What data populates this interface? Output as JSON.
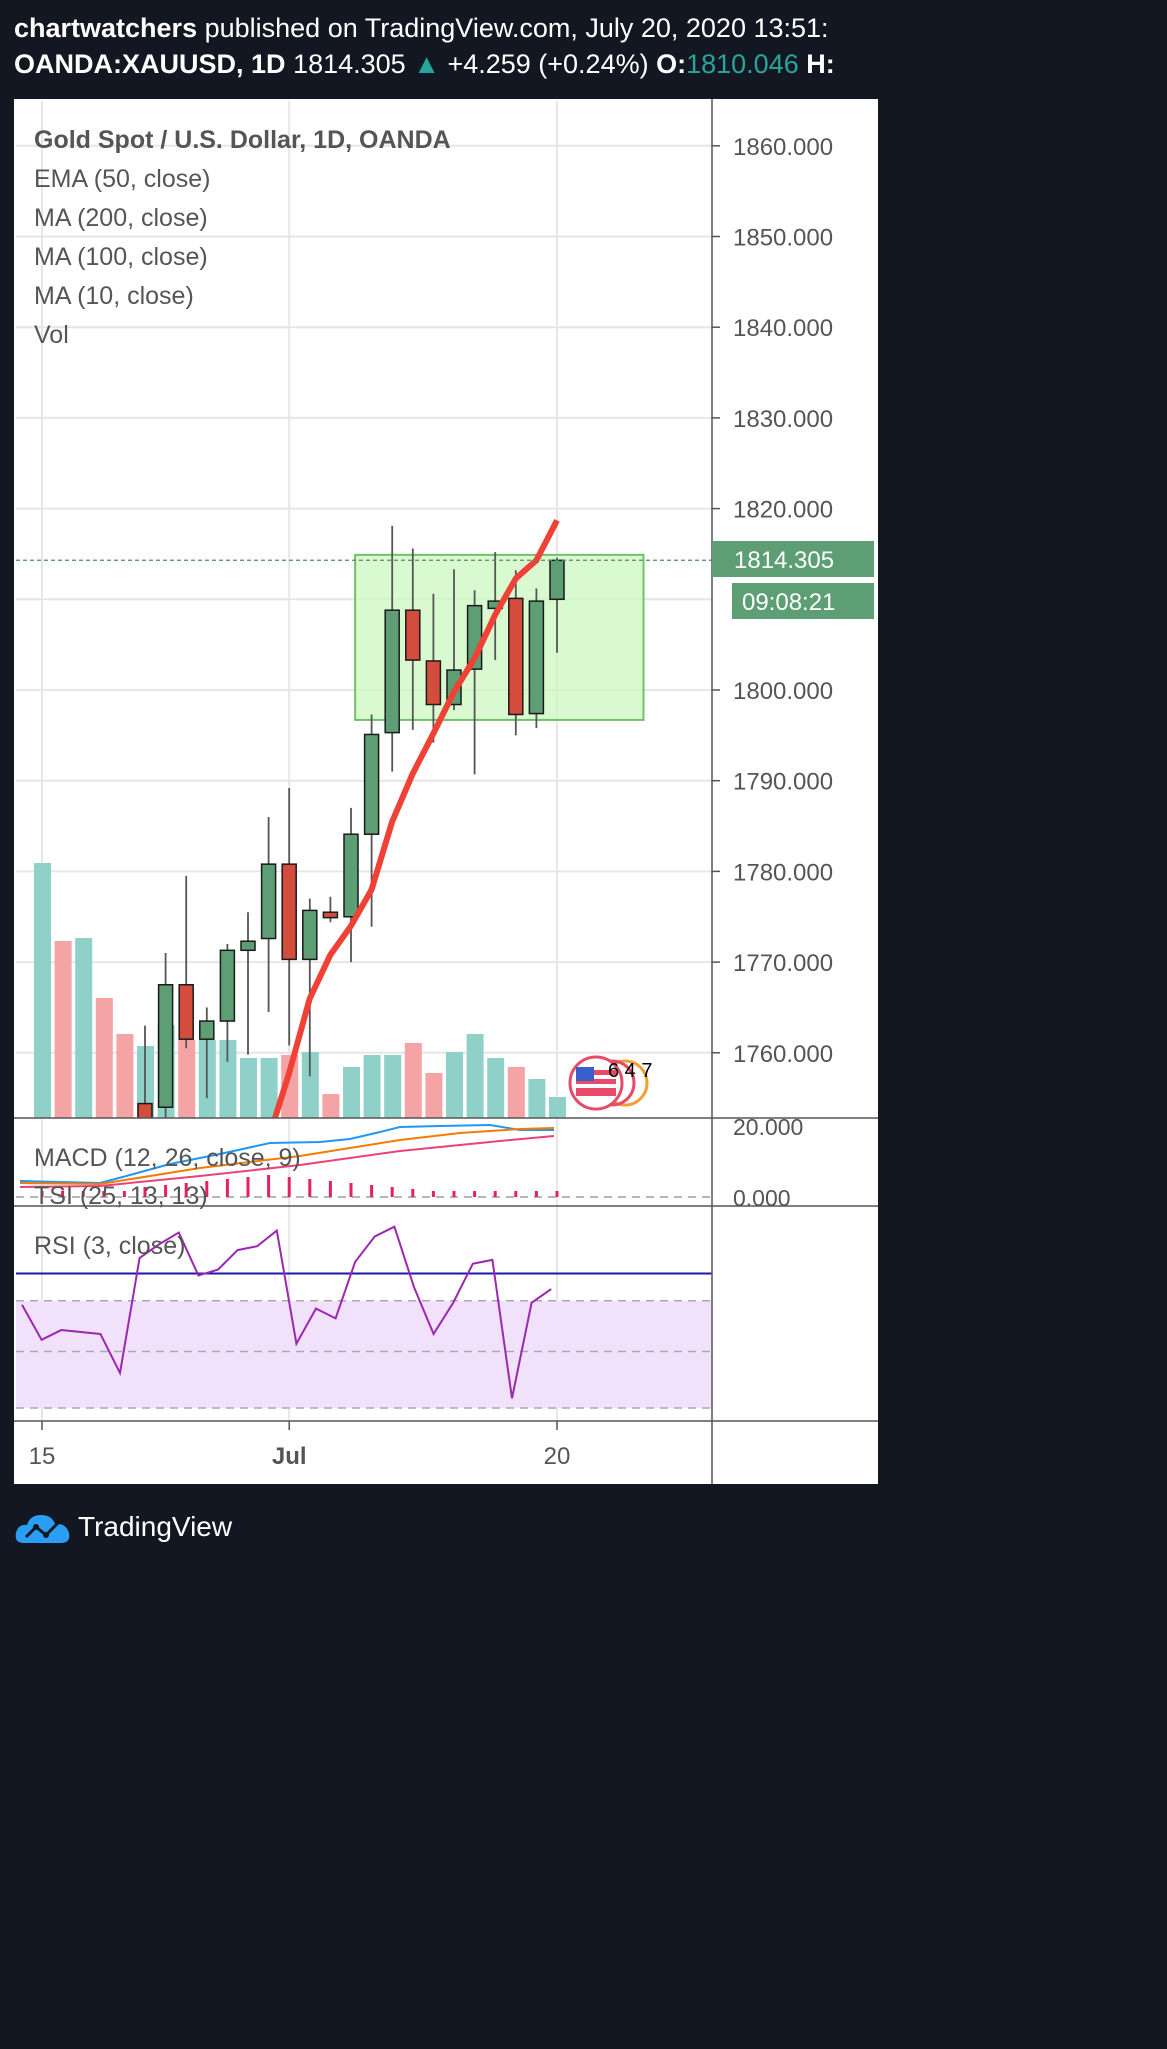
{
  "header": {
    "author": "chartwatchers",
    "published_text": "published on TradingView.com, July 20, 2020 13:51:",
    "symbol": "OANDA:XAUUSD, 1D",
    "price": "1814.305",
    "change": "+4.259 (+0.24%)",
    "open_label": "O:",
    "open_value": "1810.046",
    "high_label": "H:"
  },
  "legend": [
    "Gold Spot / U.S. Dollar, 1D, OANDA",
    "EMA (50, close)",
    "MA (200, close)",
    "MA (100, close)",
    "MA (10, close)",
    "Vol"
  ],
  "price_label": "1814.305",
  "countdown_label": "09:08:21",
  "indicators": {
    "macd_label": "MACD (12, 26, close, 9)",
    "tsi_label": "TSI (25, 13, 13)",
    "rsi_label": "RSI (3, close)",
    "macd_ticks": [
      "20.000",
      "0.000"
    ]
  },
  "event_marker": "6 4 7",
  "footer": {
    "brand": "TradingView"
  },
  "colors": {
    "up": "#5d9e75",
    "down": "#d44c3c",
    "vol_up": "#8fd1c8",
    "vol_down": "#f4a4a4",
    "ma_line": "#ef4136",
    "box_fill": "#ccf7c2",
    "box_stroke": "#73c06a",
    "rsi_line": "#9c27b0",
    "rsi_band": "#f1e1fa"
  },
  "chart_data": {
    "type": "candlestick",
    "y_ticks": [
      1860,
      1850,
      1840,
      1830,
      1820,
      1800,
      1790,
      1780,
      1770,
      1760
    ],
    "ylim": [
      1752,
      1864
    ],
    "x_ticks": [
      {
        "label": "15",
        "index": 0
      },
      {
        "label": "Jul",
        "index": 12
      },
      {
        "label": "20",
        "index": 25
      }
    ],
    "candles": [
      {
        "i": 5,
        "o": 1754.4,
        "h": 1763.0,
        "l": 1750.0,
        "c": 1752.0
      },
      {
        "i": 6,
        "o": 1754.0,
        "h": 1771.0,
        "l": 1750.0,
        "c": 1767.5
      },
      {
        "i": 7,
        "o": 1767.5,
        "h": 1779.5,
        "l": 1760.5,
        "c": 1761.5
      },
      {
        "i": 8,
        "o": 1761.5,
        "h": 1765.0,
        "l": 1755.0,
        "c": 1763.5
      },
      {
        "i": 9,
        "o": 1763.5,
        "h": 1772.0,
        "l": 1759.0,
        "c": 1771.3
      },
      {
        "i": 10,
        "o": 1771.3,
        "h": 1775.5,
        "l": 1759.8,
        "c": 1772.3
      },
      {
        "i": 11,
        "o": 1772.6,
        "h": 1786.0,
        "l": 1764.5,
        "c": 1780.8
      },
      {
        "i": 12,
        "o": 1780.8,
        "h": 1789.2,
        "l": 1760.8,
        "c": 1770.3
      },
      {
        "i": 13,
        "o": 1770.3,
        "h": 1777.0,
        "l": 1757.4,
        "c": 1775.7
      },
      {
        "i": 14,
        "o": 1775.5,
        "h": 1777.2,
        "l": 1774.4,
        "c": 1774.9
      },
      {
        "i": 15,
        "o": 1775.0,
        "h": 1787.0,
        "l": 1770.0,
        "c": 1784.1
      },
      {
        "i": 16,
        "o": 1784.1,
        "h": 1797.3,
        "l": 1773.9,
        "c": 1795.1
      },
      {
        "i": 17,
        "o": 1795.3,
        "h": 1818.1,
        "l": 1791.0,
        "c": 1808.8
      },
      {
        "i": 18,
        "o": 1808.8,
        "h": 1815.6,
        "l": 1795.6,
        "c": 1803.3
      },
      {
        "i": 19,
        "o": 1803.2,
        "h": 1810.6,
        "l": 1794.2,
        "c": 1798.4
      },
      {
        "i": 20,
        "o": 1798.4,
        "h": 1813.3,
        "l": 1797.8,
        "c": 1802.2
      },
      {
        "i": 21,
        "o": 1802.3,
        "h": 1811.0,
        "l": 1790.7,
        "c": 1809.3
      },
      {
        "i": 22,
        "o": 1809.0,
        "h": 1815.2,
        "l": 1803.3,
        "c": 1809.8
      },
      {
        "i": 23,
        "o": 1810.1,
        "h": 1813.2,
        "l": 1795.0,
        "c": 1797.3
      },
      {
        "i": 24,
        "o": 1797.4,
        "h": 1811.2,
        "l": 1795.8,
        "c": 1809.8
      },
      {
        "i": 25,
        "o": 1810.0,
        "h": 1814.6,
        "l": 1804.1,
        "c": 1814.3
      }
    ],
    "ma_line": [
      {
        "i": 11.2,
        "v": 1752.0
      },
      {
        "i": 12.0,
        "v": 1757.8
      },
      {
        "i": 13.0,
        "v": 1766.0
      },
      {
        "i": 14.0,
        "v": 1770.8
      },
      {
        "i": 15.0,
        "v": 1774.0
      },
      {
        "i": 16.0,
        "v": 1778.0
      },
      {
        "i": 17.0,
        "v": 1785.5
      },
      {
        "i": 18.0,
        "v": 1790.8
      },
      {
        "i": 19.0,
        "v": 1795.2
      },
      {
        "i": 20.0,
        "v": 1799.8
      },
      {
        "i": 21.0,
        "v": 1803.5
      },
      {
        "i": 22.0,
        "v": 1808.3
      },
      {
        "i": 23.0,
        "v": 1812.3
      },
      {
        "i": 24.0,
        "v": 1814.3
      },
      {
        "i": 25.0,
        "v": 1818.7
      }
    ],
    "box": {
      "i_start": 15.2,
      "i_end": 29.2,
      "top": 1814.9,
      "bottom": 1796.7
    },
    "current_price": 1814.305,
    "volume": [
      {
        "i": 0,
        "v": 85,
        "up": true
      },
      {
        "i": 1,
        "v": 59,
        "up": false
      },
      {
        "i": 2,
        "v": 60,
        "up": true
      },
      {
        "i": 3,
        "v": 40,
        "up": false
      },
      {
        "i": 4,
        "v": 28,
        "up": false
      },
      {
        "i": 5,
        "v": 24,
        "up": true
      },
      {
        "i": 6,
        "v": 31,
        "up": true
      },
      {
        "i": 7,
        "v": 26,
        "up": false
      },
      {
        "i": 8,
        "v": 26,
        "up": true
      },
      {
        "i": 9,
        "v": 26,
        "up": true
      },
      {
        "i": 10,
        "v": 20,
        "up": true
      },
      {
        "i": 11,
        "v": 20,
        "up": true
      },
      {
        "i": 12,
        "v": 21,
        "up": false
      },
      {
        "i": 13,
        "v": 22,
        "up": true
      },
      {
        "i": 14,
        "v": 8,
        "up": false
      },
      {
        "i": 15,
        "v": 17,
        "up": true
      },
      {
        "i": 16,
        "v": 21,
        "up": true
      },
      {
        "i": 17,
        "v": 21,
        "up": true
      },
      {
        "i": 18,
        "v": 25,
        "up": false
      },
      {
        "i": 19,
        "v": 15,
        "up": false
      },
      {
        "i": 20,
        "v": 22,
        "up": true
      },
      {
        "i": 21,
        "v": 28,
        "up": true
      },
      {
        "i": 22,
        "v": 20,
        "up": true
      },
      {
        "i": 23,
        "v": 17,
        "up": false
      },
      {
        "i": 24,
        "v": 13,
        "up": true
      },
      {
        "i": 25,
        "v": 7,
        "up": true
      }
    ],
    "rsi": [
      {
        "i": 0,
        "v": 54
      },
      {
        "i": 1,
        "v": 36
      },
      {
        "i": 2,
        "v": 41
      },
      {
        "i": 3,
        "v": 40
      },
      {
        "i": 4,
        "v": 39
      },
      {
        "i": 5,
        "v": 19
      },
      {
        "i": 6,
        "v": 78
      },
      {
        "i": 7,
        "v": 85
      },
      {
        "i": 8,
        "v": 91
      },
      {
        "i": 9,
        "v": 69
      },
      {
        "i": 10,
        "v": 72
      },
      {
        "i": 11,
        "v": 82
      },
      {
        "i": 12,
        "v": 84
      },
      {
        "i": 13,
        "v": 92
      },
      {
        "i": 14,
        "v": 34
      },
      {
        "i": 15,
        "v": 52
      },
      {
        "i": 16,
        "v": 47
      },
      {
        "i": 17,
        "v": 76
      },
      {
        "i": 18,
        "v": 89
      },
      {
        "i": 19,
        "v": 94
      },
      {
        "i": 20,
        "v": 63
      },
      {
        "i": 21,
        "v": 39
      },
      {
        "i": 22,
        "v": 55
      },
      {
        "i": 23,
        "v": 75
      },
      {
        "i": 24,
        "v": 77
      },
      {
        "i": 25,
        "v": 6
      },
      {
        "i": 26,
        "v": 55
      },
      {
        "i": 27,
        "v": 62
      }
    ],
    "rsi_ylim": [
      0,
      100
    ],
    "rsi_levels": [
      70,
      56,
      30,
      1
    ]
  }
}
